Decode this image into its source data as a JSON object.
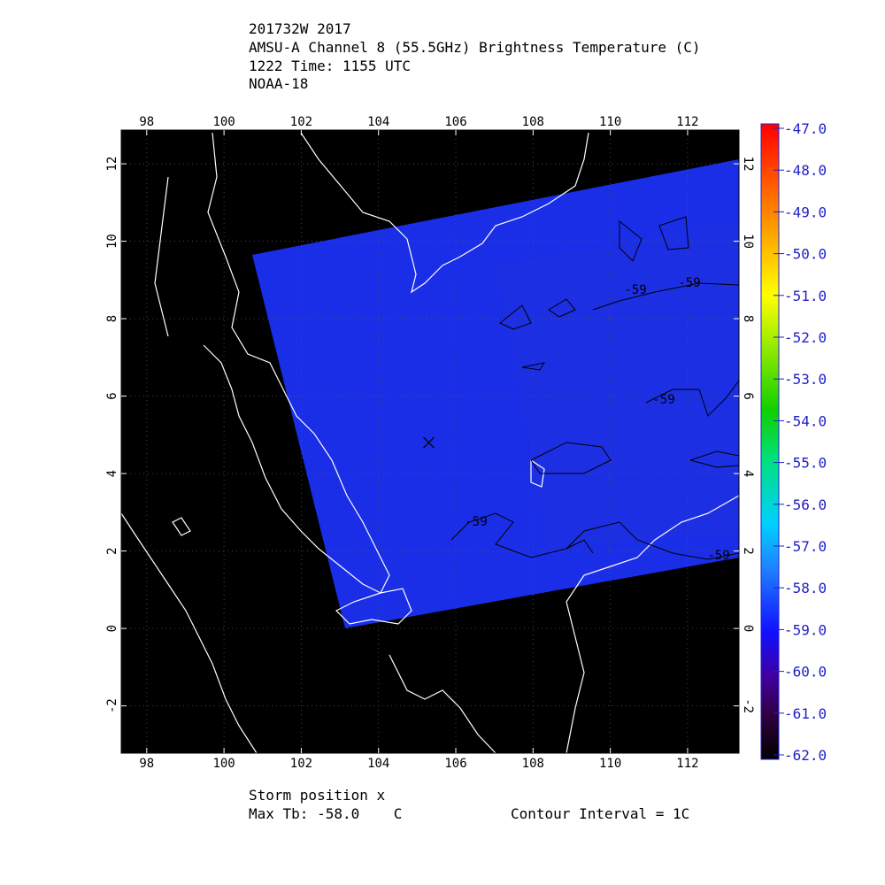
{
  "title_lines": [
    "201732W 2017",
    "AMSU-A Channel 8 (55.5GHz) Brightness Temperature (C)",
    "1222 Time: 1155 UTC",
    "NOAA-18"
  ],
  "map": {
    "xlim": [
      97.34,
      113.33
    ],
    "ylim": [
      -3.22,
      12.87
    ],
    "xticks": [
      98,
      100,
      102,
      104,
      106,
      108,
      110,
      112
    ],
    "yticks": [
      -2,
      0,
      2,
      4,
      6,
      8,
      10,
      12
    ],
    "storm_position": {
      "lon": 105.3,
      "lat": 4.8
    },
    "contour_labels": [
      "-59",
      "-59",
      "-59",
      "-59",
      "-59"
    ]
  },
  "colorbar": {
    "lim": [
      -62,
      -47
    ],
    "ticks": [
      {
        "value": -47,
        "label": "-47.0"
      },
      {
        "value": -48,
        "label": "-48.0"
      },
      {
        "value": -49,
        "label": "-49.0"
      },
      {
        "value": -50,
        "label": "-50.0"
      },
      {
        "value": -51,
        "label": "-51.0"
      },
      {
        "value": -52,
        "label": "-52.0"
      },
      {
        "value": -53,
        "label": "-53.0"
      },
      {
        "value": -54,
        "label": "-54.0"
      },
      {
        "value": -55,
        "label": "-55.0"
      },
      {
        "value": -56,
        "label": "-56.0"
      },
      {
        "value": -57,
        "label": "-57.0"
      },
      {
        "value": -58,
        "label": "-58.0"
      },
      {
        "value": -59,
        "label": "-59.0"
      },
      {
        "value": -60,
        "label": "-60.0"
      },
      {
        "value": -61,
        "label": "-61.0"
      },
      {
        "value": -62,
        "label": "-62.0"
      }
    ]
  },
  "footer": {
    "storm": "Storm position x",
    "max_tb": "Max Tb: -58.0    C",
    "contour_interval": "Contour Interval = 1C"
  }
}
